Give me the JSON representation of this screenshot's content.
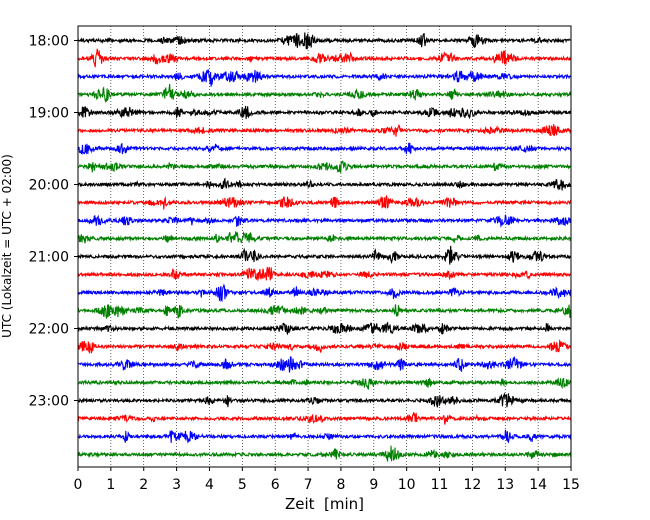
{
  "chart_data": {
    "type": "line",
    "title": "",
    "xlabel": "Zeit  [min]",
    "ylabel": "UTC (Lokalzeit = UTC + 02:00)",
    "xlim": [
      0,
      15
    ],
    "x_ticks": [
      "0",
      "1",
      "2",
      "3",
      "4",
      "5",
      "6",
      "7",
      "8",
      "9",
      "10",
      "11",
      "12",
      "13",
      "14",
      "15"
    ],
    "y_ticks": [
      "18:00",
      "19:00",
      "20:00",
      "21:00",
      "22:00",
      "23:00"
    ],
    "grid": "vertical dotted at each minute",
    "trace_colors": [
      "#000000",
      "#ff0000",
      "#0000ff",
      "#008000"
    ],
    "series": [
      {
        "start": "18:00",
        "color": "#000000"
      },
      {
        "start": "18:15",
        "color": "#ff0000"
      },
      {
        "start": "18:30",
        "color": "#0000ff"
      },
      {
        "start": "18:45",
        "color": "#008000"
      },
      {
        "start": "19:00",
        "color": "#000000"
      },
      {
        "start": "19:15",
        "color": "#ff0000"
      },
      {
        "start": "19:30",
        "color": "#0000ff"
      },
      {
        "start": "19:45",
        "color": "#008000"
      },
      {
        "start": "20:00",
        "color": "#000000"
      },
      {
        "start": "20:15",
        "color": "#ff0000"
      },
      {
        "start": "20:30",
        "color": "#0000ff"
      },
      {
        "start": "20:45",
        "color": "#008000"
      },
      {
        "start": "21:00",
        "color": "#000000"
      },
      {
        "start": "21:15",
        "color": "#ff0000"
      },
      {
        "start": "21:30",
        "color": "#0000ff"
      },
      {
        "start": "21:45",
        "color": "#008000"
      },
      {
        "start": "22:00",
        "color": "#000000"
      },
      {
        "start": "22:15",
        "color": "#ff0000"
      },
      {
        "start": "22:30",
        "color": "#0000ff"
      },
      {
        "start": "22:45",
        "color": "#008000"
      },
      {
        "start": "23:00",
        "color": "#000000"
      },
      {
        "start": "23:15",
        "color": "#ff0000"
      },
      {
        "start": "23:30",
        "color": "#0000ff"
      },
      {
        "start": "23:45",
        "color": "#008000"
      }
    ]
  }
}
